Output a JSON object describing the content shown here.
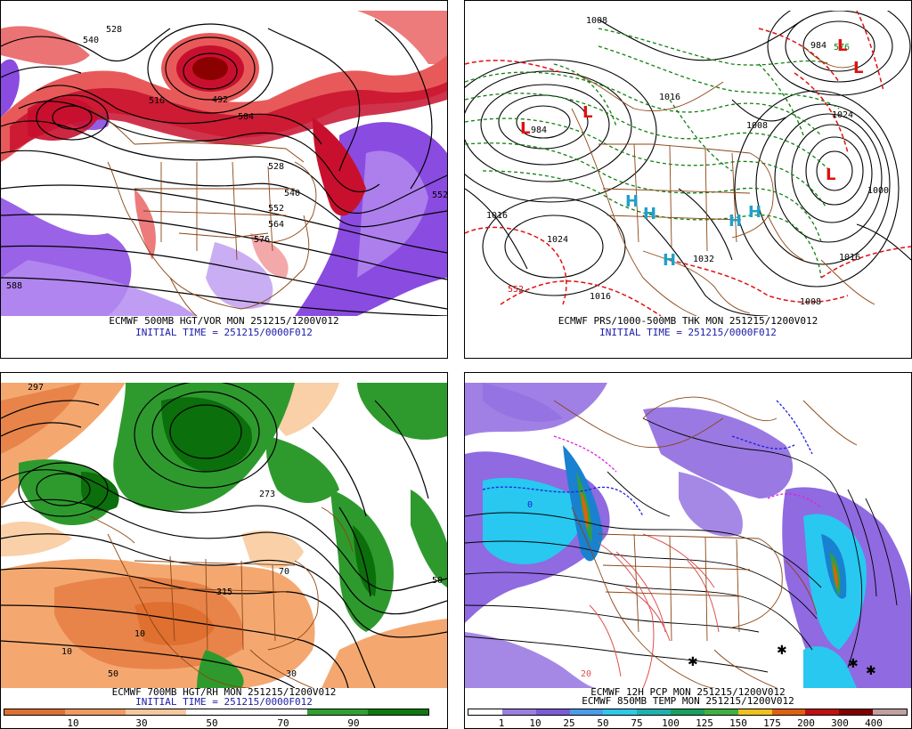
{
  "panels": [
    {
      "id": "p500",
      "caption1": "ECMWF 500MB HGT/VOR MON 251215/1200V012",
      "caption2": "INITIAL TIME = 251215/0000F012",
      "contour_labels": [
        "528",
        "540",
        "516",
        "504",
        "492",
        "528",
        "540",
        "552",
        "564",
        "576",
        "588",
        "552"
      ],
      "colors": {
        "vort_high": "#c8102e",
        "vort_mid": "#e85a5a",
        "vort_low": "#f2a0a0",
        "vort_neg": "#8a4be0",
        "neg_light": "#b48cf0",
        "line": "#000000",
        "border": "#8b4513"
      }
    },
    {
      "id": "pmslp",
      "caption1": "ECMWF PRS/1000-500MB THK MON 251215/1200V012",
      "caption2": "INITIAL TIME = 251215/0000F012",
      "contour_labels": [
        "1008",
        "984",
        "1016",
        "1024",
        "1016",
        "1032",
        "1016",
        "984",
        "1008",
        "1016",
        "1000",
        "576",
        "552",
        "1008",
        "1024"
      ],
      "center_labels": [
        "L",
        "L",
        "L",
        "L",
        "L",
        "H",
        "H",
        "H",
        "H",
        "H"
      ],
      "colors": {
        "isobar": "#000000",
        "thick_warm": "#e01010",
        "thick_cold": "#108010",
        "high": "#20a0c8",
        "low": "#e01010",
        "border": "#8b4513"
      }
    },
    {
      "id": "p700",
      "caption1": "ECMWF 700MB HGT/RH MON 251215/1200V012",
      "caption2": "INITIAL TIME = 251215/0000F012",
      "contour_labels": [
        "297",
        "273",
        "315",
        "10",
        "10",
        "50",
        "50",
        "70",
        "30"
      ],
      "scale": {
        "ticks": [
          "10",
          "30",
          "50",
          "70",
          "90"
        ],
        "colors": [
          "#e07030",
          "#f09a60",
          "#f5c8a0",
          "#ffffff",
          "#ffffff",
          "#30a030",
          "#0c7a0c"
        ]
      },
      "colors": {
        "dry1": "#e8844a",
        "dry2": "#f4a870",
        "dry3": "#f9d0a8",
        "wet1": "#2e9a2e",
        "wet2": "#0b6f0b",
        "line": "#000000",
        "border": "#8b4513"
      }
    },
    {
      "id": "ppcp",
      "caption1": "ECMWF 12H PCP MON 251215/1200V012",
      "caption2": "ECMWF 850MB TEMP MON 251215/1200V012",
      "contour_labels": [
        "20",
        "0"
      ],
      "scale": {
        "ticks": [
          "1",
          "10",
          "25",
          "50",
          "75",
          "100",
          "125",
          "150",
          "175",
          "200",
          "300",
          "400"
        ],
        "colors": [
          "#ffffff",
          "#9b7fe0",
          "#7a5cd6",
          "#4a9de8",
          "#30c8e8",
          "#20b0b0",
          "#18a060",
          "#40b040",
          "#f0c020",
          "#e06010",
          "#c01010",
          "#800000",
          "#c0a0a0"
        ]
      },
      "colors": {
        "purple": "#8f6ae0",
        "cyan": "#28c8f0",
        "blue": "#1a80d0",
        "green": "#30a040",
        "temp_warm": "#e05050",
        "temp_cold": "#2020e0",
        "temp_zero": "#e020e0",
        "border": "#8b4513",
        "line": "#000000"
      }
    }
  ]
}
